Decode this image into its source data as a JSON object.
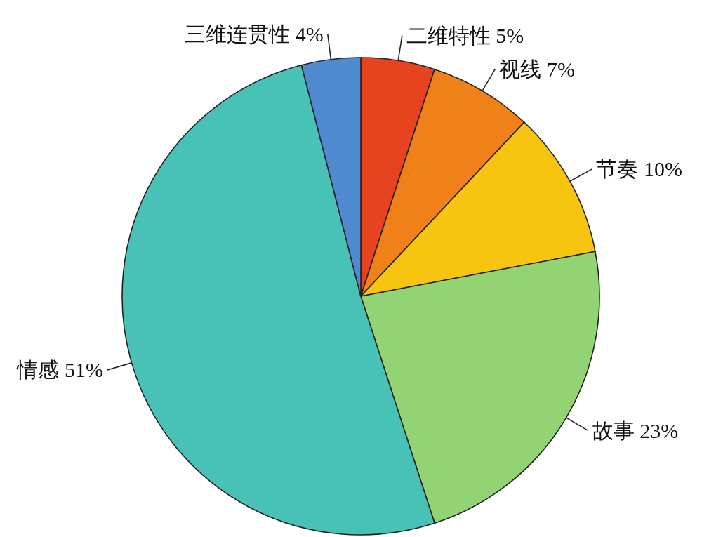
{
  "chart_data": {
    "type": "pie",
    "categories": [
      "二维特性",
      "视线",
      "节奏",
      "故事",
      "情感",
      "三维连贯性"
    ],
    "values": [
      5,
      7,
      10,
      23,
      51,
      4
    ],
    "value_labels": [
      "5%",
      "7%",
      "10%",
      "23%",
      "51%",
      "4%"
    ],
    "colors": [
      "#e8431f",
      "#f08118",
      "#f7c50f",
      "#92d474",
      "#48c2b6",
      "#4f89d0"
    ]
  }
}
